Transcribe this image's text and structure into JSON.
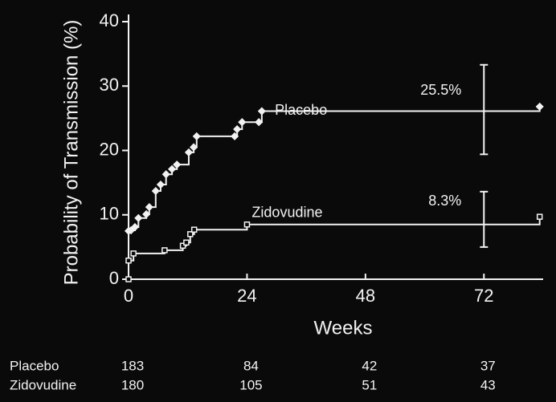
{
  "chart_data": {
    "type": "step",
    "x_label": "Weeks",
    "y_label": "Probability of Transmission (%)",
    "xlim": [
      0,
      84
    ],
    "xticks": [
      0,
      24,
      48,
      72
    ],
    "ylim": [
      0,
      40
    ],
    "yticks": [
      0,
      10,
      20,
      30,
      40
    ],
    "color": "#f2f2f2",
    "series": [
      {
        "name": "Placebo",
        "marker": "diamond",
        "x": [
          0,
          0.5,
          1.3,
          2,
          3.6,
          4.2,
          5.5,
          6.5,
          7.6,
          8.8,
          9.8,
          12.2,
          13.2,
          13.8,
          21.5,
          22,
          23,
          26.4,
          27,
          83.3
        ],
        "values": [
          7.5,
          7.6,
          8.1,
          9.5,
          10.1,
          11.2,
          13.7,
          14.7,
          16.3,
          17.1,
          17.8,
          19.7,
          20.5,
          22.2,
          22.2,
          23.3,
          24.4,
          24.4,
          26.1,
          26.8
        ],
        "ci": {
          "x": 72,
          "value": 25.5,
          "value_label": "25.5%",
          "low": 19.4,
          "high": 33.3
        }
      },
      {
        "name": "Zidovudine",
        "marker": "square",
        "x": [
          0,
          0,
          1,
          7.3,
          11,
          11.7,
          12.5,
          13.3,
          24,
          83.3
        ],
        "values": [
          0,
          2.9,
          4.0,
          4.5,
          5.2,
          5.7,
          7.0,
          7.7,
          8.5,
          9.7
        ],
        "ci": {
          "x": 72,
          "value": 8.3,
          "value_label": "8.3%",
          "low": 5.0,
          "high": 13.6
        }
      }
    ],
    "number_at_risk": {
      "x": [
        0,
        24,
        48,
        72
      ],
      "rows": [
        {
          "name": "Placebo",
          "values": [
            183,
            84,
            42,
            37
          ]
        },
        {
          "name": "Zidovudine",
          "values": [
            180,
            105,
            51,
            43
          ]
        }
      ]
    }
  }
}
